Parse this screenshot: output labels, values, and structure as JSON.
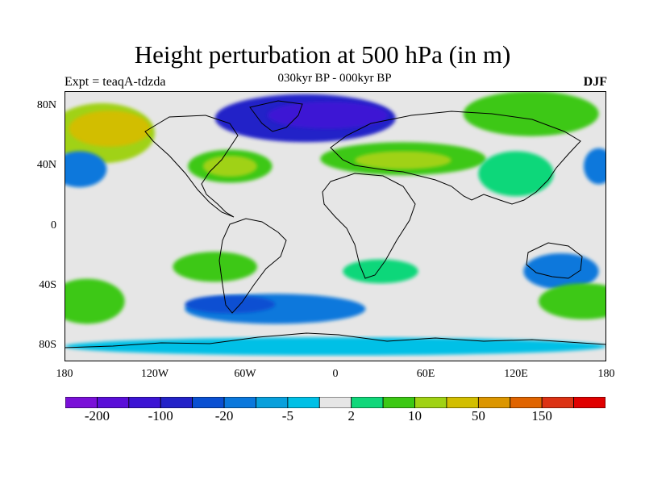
{
  "header": {
    "title": "Height perturbation at 500 hPa (in m)",
    "subtitle": "030kyr BP - 000kyr BP",
    "experiment": "Expt = teaqA-tdzda",
    "season": "DJF"
  },
  "map": {
    "projection": "cylindrical-equidistant",
    "lon_range": [
      -180,
      180
    ],
    "lat_range": [
      -90,
      90
    ],
    "lat_ticks": [
      {
        "value": 80,
        "label": "80N"
      },
      {
        "value": 40,
        "label": "40N"
      },
      {
        "value": 0,
        "label": "0"
      },
      {
        "value": -40,
        "label": "40S"
      },
      {
        "value": -80,
        "label": "80S"
      }
    ],
    "lon_ticks": [
      {
        "value": -180,
        "label": "180"
      },
      {
        "value": -120,
        "label": "120W"
      },
      {
        "value": -60,
        "label": "60W"
      },
      {
        "value": 0,
        "label": "0"
      },
      {
        "value": 60,
        "label": "60E"
      },
      {
        "value": 120,
        "label": "120E"
      },
      {
        "value": 180,
        "label": "180"
      }
    ],
    "background_color": "#e6e6e6",
    "coastline_color": "#000000",
    "features": [
      {
        "name": "arctic-canada-low",
        "lon": -20,
        "lat": 72,
        "rx": 60,
        "ry": 16,
        "level": 3
      },
      {
        "name": "arctic-canada-low-core",
        "lon": -5,
        "lat": 74,
        "rx": 40,
        "ry": 9,
        "level": 2
      },
      {
        "name": "north-pacific-high",
        "lon": -155,
        "lat": 62,
        "rx": 35,
        "ry": 20,
        "level": 11
      },
      {
        "name": "north-pacific-high-core",
        "lon": -150,
        "lat": 65,
        "rx": 27,
        "ry": 12,
        "level": 12
      },
      {
        "name": "north-atlantic-high",
        "lon": -70,
        "lat": 40,
        "rx": 28,
        "ry": 11,
        "level": 10
      },
      {
        "name": "north-atlantic-high-core",
        "lon": -70,
        "lat": 40,
        "rx": 18,
        "ry": 7,
        "level": 11
      },
      {
        "name": "eurasia-high",
        "lon": 45,
        "lat": 45,
        "rx": 55,
        "ry": 11,
        "level": 10
      },
      {
        "name": "eurasia-high-core",
        "lon": 45,
        "lat": 44,
        "rx": 32,
        "ry": 6,
        "level": 11
      },
      {
        "name": "siberia-high",
        "lon": 130,
        "lat": 75,
        "rx": 45,
        "ry": 15,
        "level": 10
      },
      {
        "name": "pacific-high-west",
        "lon": 120,
        "lat": 35,
        "rx": 25,
        "ry": 15,
        "level": 9
      },
      {
        "name": "north-pacific-low",
        "lon": -170,
        "lat": 38,
        "rx": 18,
        "ry": 12,
        "level": 5
      },
      {
        "name": "north-pacific-low-east",
        "lon": 175,
        "lat": 40,
        "rx": 10,
        "ry": 12,
        "level": 5
      },
      {
        "name": "south-pacific-high",
        "lon": -80,
        "lat": -27,
        "rx": 28,
        "ry": 10,
        "level": 10
      },
      {
        "name": "south-atlantic-high",
        "lon": 30,
        "lat": -30,
        "rx": 25,
        "ry": 8,
        "level": 9
      },
      {
        "name": "south-indian-low",
        "lon": 150,
        "lat": -30,
        "rx": 25,
        "ry": 12,
        "level": 5
      },
      {
        "name": "southern-ocean-high-west",
        "lon": -165,
        "lat": -50,
        "rx": 25,
        "ry": 15,
        "level": 10
      },
      {
        "name": "southern-ocean-high-east",
        "lon": 165,
        "lat": -50,
        "rx": 30,
        "ry": 12,
        "level": 10
      },
      {
        "name": "southern-ocean-low",
        "lon": -40,
        "lat": -55,
        "rx": 60,
        "ry": 10,
        "level": 5
      },
      {
        "name": "southern-ocean-low-core",
        "lon": -70,
        "lat": -52,
        "rx": 30,
        "ry": 6,
        "level": 4
      },
      {
        "name": "antarctic-band",
        "lon": 0,
        "lat": -80,
        "rx": 180,
        "ry": 6,
        "level": 7
      }
    ]
  },
  "colorbar": {
    "colors": [
      "#7a10d8",
      "#5a0ed8",
      "#3c14d4",
      "#2322c8",
      "#0a50d2",
      "#0a78dc",
      "#08a0dc",
      "#00c0e6",
      "#e6e6e6",
      "#10d77a",
      "#3cc814",
      "#a0d214",
      "#d2be00",
      "#dc9600",
      "#e06400",
      "#dc3214",
      "#e00000"
    ],
    "labels": [
      {
        "text": "-200",
        "index": 1
      },
      {
        "text": "-100",
        "index": 3
      },
      {
        "text": "-20",
        "index": 5
      },
      {
        "text": "-5",
        "index": 7
      },
      {
        "text": "2",
        "index": 9
      },
      {
        "text": "10",
        "index": 11
      },
      {
        "text": "50",
        "index": 13
      },
      {
        "text": "150",
        "index": 15
      }
    ]
  }
}
